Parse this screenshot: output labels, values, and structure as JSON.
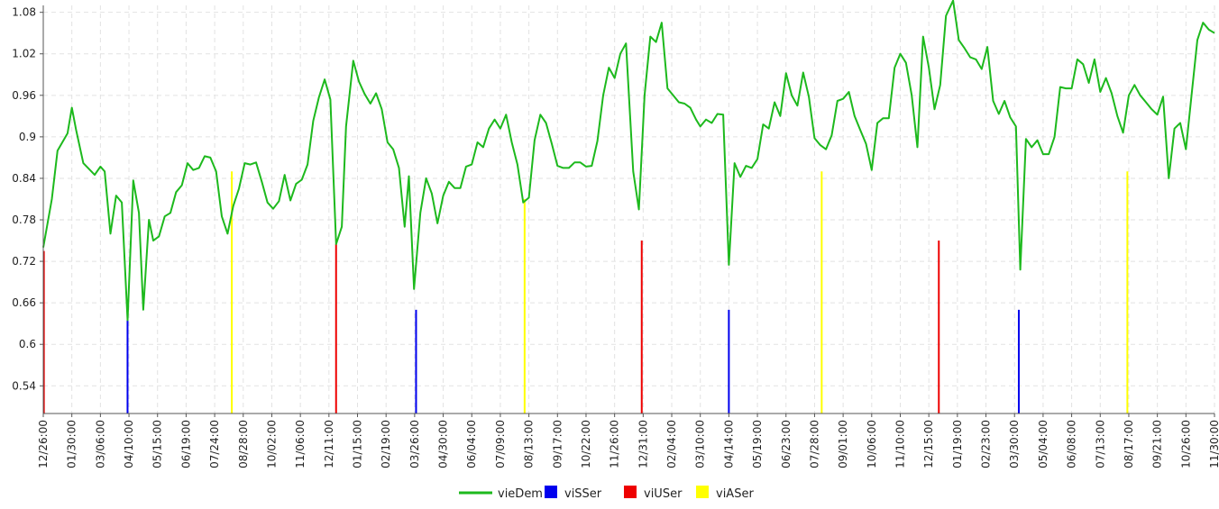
{
  "chart_data": {
    "type": "line",
    "title": "",
    "xlabel": "",
    "ylabel": "",
    "ylim": [
      0.5,
      1.09
    ],
    "yticks": [
      "0.54",
      "0.6",
      "0.66",
      "0.72",
      "0.78",
      "0.84",
      "0.9",
      "0.96",
      "1.02",
      "1.08"
    ],
    "xticks": [
      "12/26:00",
      "01/30:00",
      "03/06:00",
      "04/10:00",
      "05/15:00",
      "06/19:00",
      "07/24:00",
      "08/28:00",
      "10/02:00",
      "11/06:00",
      "12/11:00",
      "01/15:00",
      "02/19:00",
      "03/26:00",
      "04/30:00",
      "06/04:00",
      "07/09:00",
      "08/13:00",
      "09/17:00",
      "10/22:00",
      "11/26:00",
      "12/31:00",
      "02/04:00",
      "03/10:00",
      "04/14:00",
      "05/19:00",
      "06/23:00",
      "07/28:00",
      "09/01:00",
      "10/06:00",
      "11/10:00",
      "12/15:00",
      "01/19:00",
      "02/23:00",
      "03/30:00",
      "05/04:00",
      "06/08:00",
      "07/13:00",
      "08/17:00",
      "09/21:00",
      "10/26:00",
      "11/30:00"
    ],
    "grid": true,
    "legend_position": "bottom",
    "x_domain": [
      0,
      41
    ],
    "series": [
      {
        "name": "vieDem",
        "color": "#1db91d",
        "kind": "line",
        "points": [
          [
            0.0,
            0.74
          ],
          [
            0.3,
            0.81
          ],
          [
            0.5,
            0.88
          ],
          [
            0.85,
            0.905
          ],
          [
            1.0,
            0.942
          ],
          [
            1.15,
            0.91
          ],
          [
            1.4,
            0.862
          ],
          [
            1.8,
            0.845
          ],
          [
            2.0,
            0.857
          ],
          [
            2.15,
            0.85
          ],
          [
            2.35,
            0.76
          ],
          [
            2.55,
            0.815
          ],
          [
            2.75,
            0.805
          ],
          [
            2.95,
            0.635
          ],
          [
            3.15,
            0.837
          ],
          [
            3.35,
            0.79
          ],
          [
            3.5,
            0.65
          ],
          [
            3.7,
            0.78
          ],
          [
            3.85,
            0.75
          ],
          [
            4.05,
            0.756
          ],
          [
            4.25,
            0.785
          ],
          [
            4.45,
            0.79
          ],
          [
            4.65,
            0.82
          ],
          [
            4.85,
            0.83
          ],
          [
            5.05,
            0.862
          ],
          [
            5.25,
            0.852
          ],
          [
            5.45,
            0.855
          ],
          [
            5.65,
            0.872
          ],
          [
            5.85,
            0.87
          ],
          [
            6.05,
            0.85
          ],
          [
            6.25,
            0.785
          ],
          [
            6.45,
            0.76
          ],
          [
            6.65,
            0.8
          ],
          [
            6.85,
            0.825
          ],
          [
            7.05,
            0.862
          ],
          [
            7.25,
            0.86
          ],
          [
            7.45,
            0.863
          ],
          [
            7.65,
            0.835
          ],
          [
            7.85,
            0.805
          ],
          [
            8.05,
            0.796
          ],
          [
            8.25,
            0.807
          ],
          [
            8.45,
            0.845
          ],
          [
            8.65,
            0.808
          ],
          [
            8.85,
            0.832
          ],
          [
            9.05,
            0.838
          ],
          [
            9.25,
            0.86
          ],
          [
            9.45,
            0.923
          ],
          [
            9.65,
            0.957
          ],
          [
            9.85,
            0.983
          ],
          [
            10.05,
            0.954
          ],
          [
            10.25,
            0.745
          ],
          [
            10.45,
            0.77
          ],
          [
            10.6,
            0.915
          ],
          [
            10.85,
            1.01
          ],
          [
            11.05,
            0.98
          ],
          [
            11.25,
            0.962
          ],
          [
            11.45,
            0.948
          ],
          [
            11.65,
            0.963
          ],
          [
            11.85,
            0.94
          ],
          [
            12.05,
            0.892
          ],
          [
            12.25,
            0.882
          ],
          [
            12.45,
            0.855
          ],
          [
            12.65,
            0.77
          ],
          [
            12.8,
            0.843
          ],
          [
            12.98,
            0.68
          ],
          [
            13.2,
            0.79
          ],
          [
            13.4,
            0.84
          ],
          [
            13.6,
            0.818
          ],
          [
            13.8,
            0.775
          ],
          [
            14.0,
            0.815
          ],
          [
            14.2,
            0.835
          ],
          [
            14.4,
            0.826
          ],
          [
            14.6,
            0.826
          ],
          [
            14.8,
            0.857
          ],
          [
            15.0,
            0.86
          ],
          [
            15.2,
            0.892
          ],
          [
            15.4,
            0.885
          ],
          [
            15.6,
            0.912
          ],
          [
            15.8,
            0.925
          ],
          [
            16.0,
            0.912
          ],
          [
            16.2,
            0.932
          ],
          [
            16.4,
            0.892
          ],
          [
            16.6,
            0.86
          ],
          [
            16.8,
            0.805
          ],
          [
            17.0,
            0.812
          ],
          [
            17.2,
            0.895
          ],
          [
            17.4,
            0.932
          ],
          [
            17.6,
            0.92
          ],
          [
            17.8,
            0.89
          ],
          [
            18.0,
            0.858
          ],
          [
            18.2,
            0.855
          ],
          [
            18.4,
            0.855
          ],
          [
            18.6,
            0.863
          ],
          [
            18.8,
            0.863
          ],
          [
            19.0,
            0.857
          ],
          [
            19.2,
            0.858
          ],
          [
            19.4,
            0.894
          ],
          [
            19.6,
            0.96
          ],
          [
            19.8,
            1.0
          ],
          [
            20.0,
            0.985
          ],
          [
            20.2,
            1.02
          ],
          [
            20.4,
            1.035
          ],
          [
            20.65,
            0.85
          ],
          [
            20.85,
            0.795
          ],
          [
            21.05,
            0.96
          ],
          [
            21.25,
            1.045
          ],
          [
            21.45,
            1.037
          ],
          [
            21.65,
            1.065
          ],
          [
            21.85,
            0.97
          ],
          [
            22.05,
            0.96
          ],
          [
            22.25,
            0.95
          ],
          [
            22.45,
            0.948
          ],
          [
            22.65,
            0.942
          ],
          [
            22.85,
            0.925
          ],
          [
            23.0,
            0.915
          ],
          [
            23.2,
            0.925
          ],
          [
            23.4,
            0.92
          ],
          [
            23.6,
            0.933
          ],
          [
            23.8,
            0.932
          ],
          [
            24.0,
            0.715
          ],
          [
            24.2,
            0.862
          ],
          [
            24.4,
            0.842
          ],
          [
            24.6,
            0.858
          ],
          [
            24.8,
            0.855
          ],
          [
            25.0,
            0.868
          ],
          [
            25.2,
            0.918
          ],
          [
            25.4,
            0.912
          ],
          [
            25.6,
            0.95
          ],
          [
            25.8,
            0.93
          ],
          [
            26.0,
            0.992
          ],
          [
            26.2,
            0.96
          ],
          [
            26.4,
            0.945
          ],
          [
            26.6,
            0.993
          ],
          [
            26.8,
            0.958
          ],
          [
            27.0,
            0.898
          ],
          [
            27.2,
            0.888
          ],
          [
            27.4,
            0.882
          ],
          [
            27.6,
            0.902
          ],
          [
            27.8,
            0.952
          ],
          [
            28.0,
            0.955
          ],
          [
            28.2,
            0.965
          ],
          [
            28.4,
            0.93
          ],
          [
            28.6,
            0.91
          ],
          [
            28.8,
            0.89
          ],
          [
            29.0,
            0.852
          ],
          [
            29.2,
            0.92
          ],
          [
            29.4,
            0.927
          ],
          [
            29.6,
            0.927
          ],
          [
            29.8,
            1.0
          ],
          [
            30.0,
            1.02
          ],
          [
            30.2,
            1.007
          ],
          [
            30.4,
            0.96
          ],
          [
            30.6,
            0.885
          ],
          [
            30.8,
            1.045
          ],
          [
            31.0,
            1.0
          ],
          [
            31.2,
            0.94
          ],
          [
            31.4,
            0.975
          ],
          [
            31.6,
            1.075
          ],
          [
            31.85,
            1.097
          ],
          [
            32.05,
            1.04
          ],
          [
            32.25,
            1.028
          ],
          [
            32.45,
            1.015
          ],
          [
            32.65,
            1.012
          ],
          [
            32.85,
            0.998
          ],
          [
            33.05,
            1.03
          ],
          [
            33.25,
            0.952
          ],
          [
            33.45,
            0.933
          ],
          [
            33.65,
            0.952
          ],
          [
            33.85,
            0.928
          ],
          [
            34.05,
            0.915
          ],
          [
            34.2,
            0.708
          ],
          [
            34.4,
            0.897
          ],
          [
            34.6,
            0.885
          ],
          [
            34.8,
            0.895
          ],
          [
            35.0,
            0.875
          ],
          [
            35.2,
            0.875
          ],
          [
            35.4,
            0.9
          ],
          [
            35.6,
            0.972
          ],
          [
            35.8,
            0.97
          ],
          [
            36.0,
            0.97
          ],
          [
            36.2,
            1.012
          ],
          [
            36.4,
            1.005
          ],
          [
            36.6,
            0.978
          ],
          [
            36.8,
            1.012
          ],
          [
            37.0,
            0.965
          ],
          [
            37.2,
            0.985
          ],
          [
            37.4,
            0.963
          ],
          [
            37.6,
            0.93
          ],
          [
            37.8,
            0.906
          ],
          [
            38.0,
            0.96
          ],
          [
            38.2,
            0.975
          ],
          [
            38.4,
            0.96
          ],
          [
            38.6,
            0.95
          ],
          [
            38.8,
            0.94
          ],
          [
            39.0,
            0.932
          ],
          [
            39.2,
            0.958
          ],
          [
            39.4,
            0.84
          ],
          [
            39.6,
            0.912
          ],
          [
            39.8,
            0.92
          ],
          [
            40.0,
            0.882
          ],
          [
            40.2,
            0.962
          ],
          [
            40.4,
            1.04
          ],
          [
            40.6,
            1.065
          ],
          [
            40.8,
            1.055
          ],
          [
            41.0,
            1.05
          ]
        ]
      },
      {
        "name": "viSSer",
        "color": "#0000ee",
        "kind": "spikes",
        "points": [
          [
            2.95,
            0.635
          ],
          [
            13.05,
            0.65
          ],
          [
            24.0,
            0.65
          ],
          [
            34.15,
            0.65
          ]
        ]
      },
      {
        "name": "viUSer",
        "color": "#ee0000",
        "kind": "spikes",
        "points": [
          [
            0.02,
            0.735
          ],
          [
            10.25,
            0.745
          ],
          [
            20.95,
            0.75
          ],
          [
            31.35,
            0.75
          ]
        ]
      },
      {
        "name": "viASer",
        "color": "#ffff00",
        "kind": "spikes",
        "points": [
          [
            6.6,
            0.85
          ],
          [
            16.85,
            0.81
          ],
          [
            27.25,
            0.85
          ],
          [
            37.95,
            0.85
          ]
        ]
      }
    ]
  }
}
